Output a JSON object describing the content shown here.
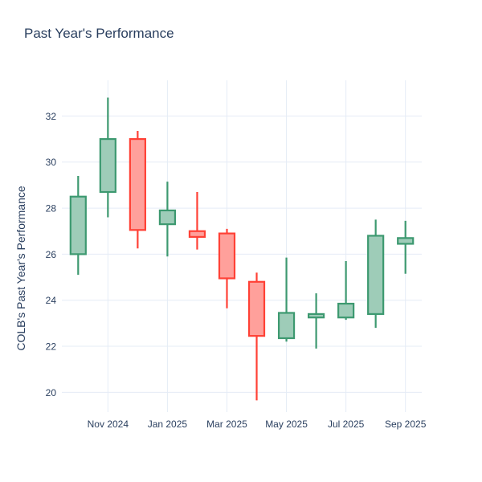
{
  "colors": {
    "text": "#2a3f5f",
    "grid": "#e5ecf6",
    "background": "#ffffff",
    "increasing_line": "#3D9970",
    "increasing_fill": "#9ECCB8",
    "decreasing_line": "#FF4136",
    "decreasing_fill": "#FFA09B"
  },
  "chart_data": {
    "type": "candlestick",
    "title": "Past Year's Performance",
    "xlabel": "",
    "ylabel": "COLB's Past Year's Performance",
    "grid": true,
    "legend": false,
    "ylim": [
      19.14,
      33.55
    ],
    "y_ticks": [
      20,
      22,
      24,
      26,
      28,
      30,
      32
    ],
    "x_ticks": [
      {
        "index": 1,
        "label": "Nov 2024"
      },
      {
        "index": 3,
        "label": "Jan 2025"
      },
      {
        "index": 5,
        "label": "Mar 2025"
      },
      {
        "index": 7,
        "label": "May 2025"
      },
      {
        "index": 9,
        "label": "Jul 2025"
      },
      {
        "index": 11,
        "label": "Sep 2025"
      }
    ],
    "candles": [
      {
        "x": "Oct 2024",
        "open": 26.0,
        "high": 29.4,
        "low": 25.1,
        "close": 28.5
      },
      {
        "x": "Nov 2024",
        "open": 28.7,
        "high": 32.8,
        "low": 27.6,
        "close": 31.0
      },
      {
        "x": "Dec 2024",
        "open": 31.0,
        "high": 31.35,
        "low": 26.25,
        "close": 27.05
      },
      {
        "x": "Jan 2025",
        "open": 27.3,
        "high": 29.15,
        "low": 25.9,
        "close": 27.9
      },
      {
        "x": "Feb 2025",
        "open": 27.0,
        "high": 28.7,
        "low": 26.2,
        "close": 26.75
      },
      {
        "x": "Mar 2025",
        "open": 26.9,
        "high": 27.1,
        "low": 23.65,
        "close": 24.95
      },
      {
        "x": "Apr 2025",
        "open": 24.8,
        "high": 25.2,
        "low": 19.65,
        "close": 22.45
      },
      {
        "x": "May 2025",
        "open": 22.35,
        "high": 25.85,
        "low": 22.2,
        "close": 23.45
      },
      {
        "x": "Jun 2025",
        "open": 23.25,
        "high": 24.3,
        "low": 21.9,
        "close": 23.4
      },
      {
        "x": "Jul 2025",
        "open": 23.25,
        "high": 25.7,
        "low": 23.15,
        "close": 23.85
      },
      {
        "x": "Aug 2025",
        "open": 23.4,
        "high": 27.5,
        "low": 22.8,
        "close": 26.8
      },
      {
        "x": "Sep 2025",
        "open": 26.45,
        "high": 27.45,
        "low": 25.15,
        "close": 26.7
      }
    ]
  }
}
